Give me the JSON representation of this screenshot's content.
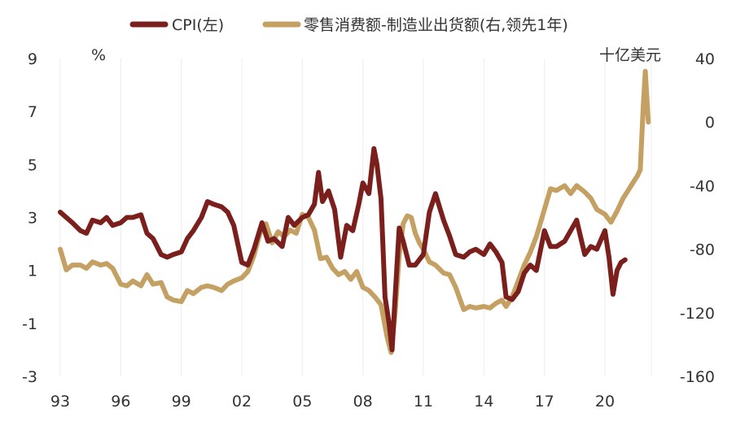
{
  "chart_data": {
    "type": "line",
    "legend": {
      "placement": "top-center",
      "entries": [
        "CPI(左)",
        "零售消费额-制造业出货额(右,领先1年)"
      ]
    },
    "left_axis": {
      "unit": "%",
      "ylim": [
        -3,
        9
      ],
      "ticks": [
        "9",
        "7",
        "5",
        "3",
        "1",
        "-1",
        "-3"
      ]
    },
    "right_axis": {
      "unit": "十亿美元",
      "ylim": [
        -160,
        40
      ],
      "ticks": [
        "40",
        "0",
        "-40",
        "-80",
        "-120",
        "-160"
      ]
    },
    "x_axis": {
      "range": [
        1993,
        2022.3
      ],
      "ticks": [
        {
          "label": "93",
          "value": 1993
        },
        {
          "label": "96",
          "value": 1996
        },
        {
          "label": "99",
          "value": 1999
        },
        {
          "label": "02",
          "value": 2002
        },
        {
          "label": "05",
          "value": 2005
        },
        {
          "label": "08",
          "value": 2008
        },
        {
          "label": "11",
          "value": 2011
        },
        {
          "label": "14",
          "value": 2014
        },
        {
          "label": "17",
          "value": 2017
        },
        {
          "label": "20",
          "value": 2020
        }
      ]
    },
    "grid": "vertical",
    "series": [
      {
        "name": "CPI(左)",
        "axis": "left",
        "color": "#7b1f1c",
        "x": [
          1993.0,
          1993.3,
          1993.6,
          1994.0,
          1994.3,
          1994.6,
          1995.0,
          1995.3,
          1995.6,
          1996.0,
          1996.3,
          1996.6,
          1997.0,
          1997.3,
          1997.6,
          1998.0,
          1998.3,
          1998.6,
          1999.0,
          1999.3,
          1999.6,
          2000.0,
          2000.3,
          2000.6,
          2001.0,
          2001.3,
          2001.6,
          2002.0,
          2002.3,
          2002.6,
          2003.0,
          2003.3,
          2003.6,
          2004.0,
          2004.3,
          2004.6,
          2005.0,
          2005.3,
          2005.6,
          2005.8,
          2006.0,
          2006.3,
          2006.6,
          2006.9,
          2007.2,
          2007.5,
          2007.8,
          2008.0,
          2008.3,
          2008.55,
          2008.7,
          2008.9,
          2009.1,
          2009.3,
          2009.45,
          2009.6,
          2009.8,
          2010.0,
          2010.3,
          2010.6,
          2011.0,
          2011.3,
          2011.6,
          2011.8,
          2012.0,
          2012.3,
          2012.6,
          2013.0,
          2013.3,
          2013.6,
          2014.0,
          2014.3,
          2014.6,
          2014.9,
          2015.1,
          2015.4,
          2015.7,
          2016.0,
          2016.3,
          2016.6,
          2017.0,
          2017.3,
          2017.6,
          2018.0,
          2018.3,
          2018.6,
          2019.0,
          2019.3,
          2019.6,
          2020.0,
          2020.2,
          2020.4,
          2020.6,
          2020.8,
          2021.0
        ],
        "values": [
          3.2,
          3.0,
          2.8,
          2.5,
          2.4,
          2.9,
          2.8,
          3.0,
          2.7,
          2.8,
          3.0,
          3.0,
          3.1,
          2.4,
          2.2,
          1.6,
          1.5,
          1.6,
          1.7,
          2.2,
          2.5,
          3.0,
          3.6,
          3.5,
          3.4,
          3.2,
          2.7,
          1.3,
          1.2,
          1.8,
          2.8,
          2.1,
          2.2,
          1.9,
          3.0,
          2.7,
          3.0,
          3.1,
          3.5,
          4.7,
          3.6,
          4.0,
          3.3,
          1.5,
          2.7,
          2.5,
          3.5,
          4.3,
          3.9,
          5.6,
          5.0,
          3.7,
          0.0,
          -1.0,
          -2.0,
          0.0,
          2.6,
          2.1,
          1.2,
          1.2,
          1.6,
          3.2,
          3.9,
          3.4,
          2.9,
          2.3,
          1.6,
          1.5,
          1.7,
          1.8,
          1.6,
          2.0,
          1.7,
          1.3,
          0.0,
          -0.1,
          0.2,
          0.9,
          1.2,
          1.0,
          2.5,
          1.9,
          1.9,
          2.1,
          2.5,
          2.9,
          1.6,
          1.9,
          1.8,
          2.5,
          1.5,
          0.1,
          1.0,
          1.3,
          1.4
        ]
      },
      {
        "name": "零售消费额-制造业出货额(右,领先1年)",
        "axis": "right",
        "color": "#c4a063",
        "x": [
          1993.0,
          1993.3,
          1993.6,
          1994.0,
          1994.3,
          1994.6,
          1995.0,
          1995.3,
          1995.6,
          1996.0,
          1996.3,
          1996.6,
          1997.0,
          1997.3,
          1997.6,
          1998.0,
          1998.3,
          1998.6,
          1999.0,
          1999.3,
          1999.6,
          2000.0,
          2000.3,
          2000.6,
          2001.0,
          2001.3,
          2001.6,
          2002.0,
          2002.3,
          2002.6,
          2002.9,
          2003.2,
          2003.5,
          2003.8,
          2004.1,
          2004.4,
          2004.7,
          2005.0,
          2005.3,
          2005.6,
          2005.9,
          2006.2,
          2006.5,
          2006.8,
          2007.1,
          2007.4,
          2007.7,
          2008.0,
          2008.3,
          2008.6,
          2008.9,
          2009.2,
          2009.4,
          2009.6,
          2009.8,
          2010.0,
          2010.2,
          2010.4,
          2010.6,
          2010.8,
          2011.0,
          2011.3,
          2011.6,
          2012.0,
          2012.3,
          2012.6,
          2013.0,
          2013.3,
          2013.6,
          2014.0,
          2014.3,
          2014.6,
          2014.9,
          2015.1,
          2015.4,
          2015.7,
          2016.0,
          2016.3,
          2016.6,
          2017.0,
          2017.3,
          2017.6,
          2018.0,
          2018.3,
          2018.6,
          2019.0,
          2019.3,
          2019.6,
          2020.0,
          2020.3,
          2020.6,
          2020.9,
          2021.1,
          2021.3,
          2021.45,
          2021.6,
          2021.75,
          2021.9,
          2022.0,
          2022.15
        ],
        "values": [
          -80,
          -93,
          -90,
          -90,
          -92,
          -88,
          -90,
          -89,
          -92,
          -102,
          -103,
          -100,
          -103,
          -96,
          -102,
          -101,
          -110,
          -112,
          -113,
          -106,
          -108,
          -104,
          -103,
          -104,
          -106,
          -102,
          -100,
          -98,
          -94,
          -84,
          -70,
          -64,
          -76,
          -69,
          -72,
          -68,
          -70,
          -58,
          -60,
          -68,
          -86,
          -85,
          -92,
          -96,
          -94,
          -99,
          -94,
          -104,
          -106,
          -110,
          -115,
          -135,
          -145,
          -120,
          -84,
          -64,
          -59,
          -60,
          -70,
          -76,
          -80,
          -88,
          -90,
          -95,
          -96,
          -104,
          -118,
          -116,
          -117,
          -116,
          -117,
          -114,
          -112,
          -116,
          -110,
          -100,
          -90,
          -82,
          -72,
          -55,
          -42,
          -43,
          -40,
          -45,
          -40,
          -44,
          -48,
          -55,
          -58,
          -63,
          -56,
          -48,
          -44,
          -40,
          -37,
          -34,
          -30,
          10,
          32,
          0
        ]
      }
    ]
  }
}
